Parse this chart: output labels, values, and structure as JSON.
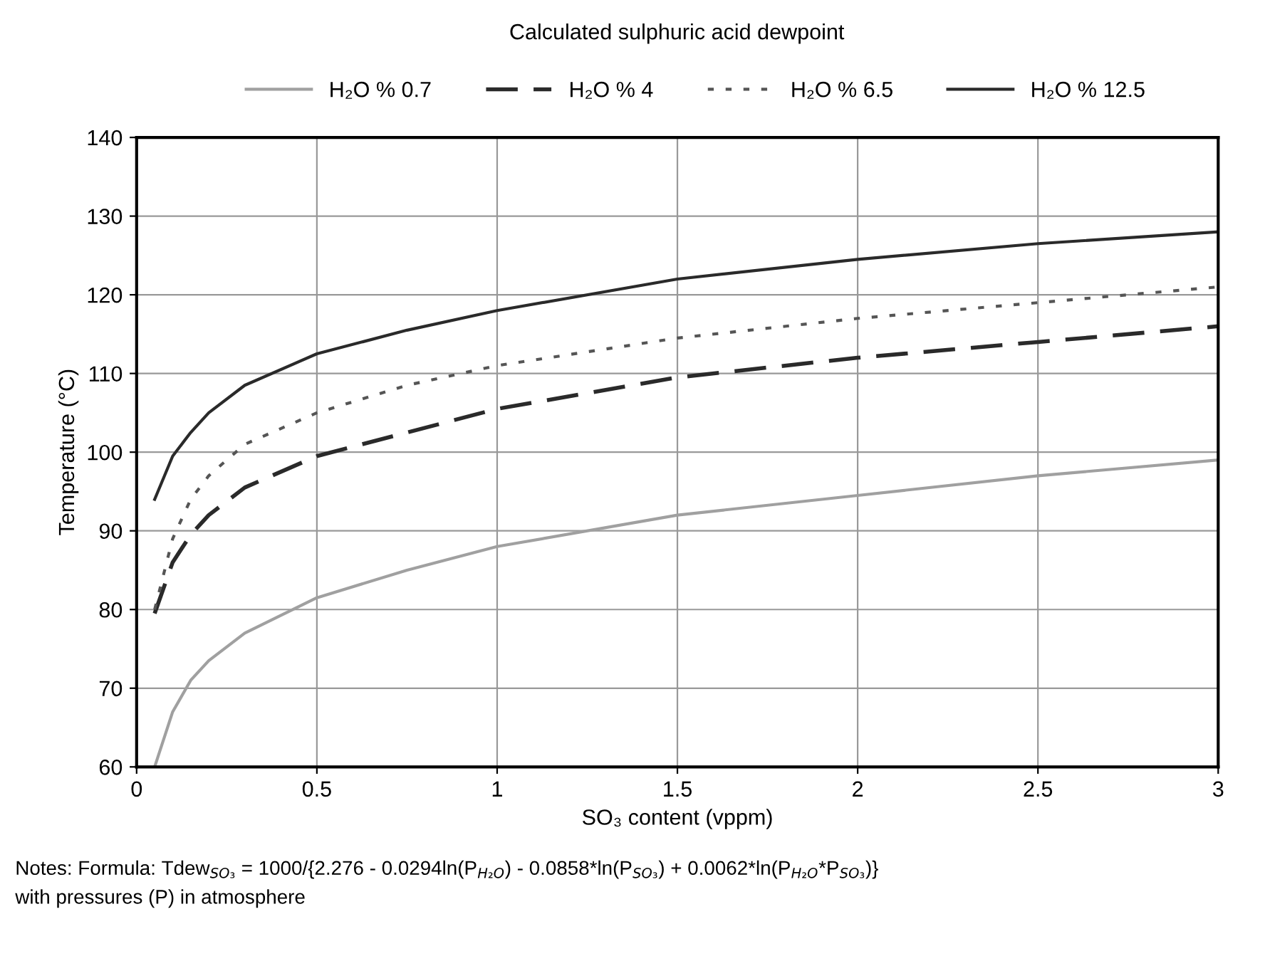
{
  "chart_data": {
    "type": "line",
    "title": "Calculated sulphuric acid dewpoint",
    "xlabel": "SO₃ content (vppm)",
    "ylabel": "Temperature (°C)",
    "x": [
      0.05,
      0.1,
      0.15,
      0.2,
      0.3,
      0.5,
      0.75,
      1,
      1.5,
      2,
      2.5,
      3
    ],
    "series": [
      {
        "name": "H₂O % 0.7",
        "color": "#a0a0a0",
        "line_style": "solid",
        "values": [
          60,
          67,
          71,
          73.5,
          77,
          81.5,
          85,
          88,
          92,
          94.5,
          97,
          99
        ]
      },
      {
        "name": "H₂O % 4",
        "color": "#2a2a2a",
        "line_style": "dashed",
        "values": [
          79.5,
          86,
          89.5,
          92,
          95.5,
          99.5,
          102.5,
          105.5,
          109.5,
          112,
          114,
          116
        ]
      },
      {
        "name": "H₂O % 6.5",
        "color": "#555555",
        "line_style": "dotted",
        "values": [
          80,
          89,
          94,
          97,
          101,
          105,
          108.5,
          111,
          114.5,
          117,
          119,
          121
        ]
      },
      {
        "name": "H₂O % 12.5",
        "color": "#2a2a2a",
        "line_style": "solid",
        "values": [
          94,
          99.5,
          102.5,
          105,
          108.5,
          112.5,
          115.5,
          118,
          122,
          124.5,
          126.5,
          128
        ]
      }
    ],
    "xlim": [
      0,
      3
    ],
    "xticks": [
      0,
      0.5,
      1,
      1.5,
      2,
      2.5,
      3
    ],
    "ylim": [
      60,
      140
    ],
    "yticks": [
      60,
      70,
      80,
      90,
      100,
      110,
      120,
      130,
      140
    ],
    "grid": true,
    "legend": "top",
    "marker": "none",
    "annotations": [
      "Notes: Formula: Tdew$_{SO₃}$ = 1000/{2.276 - 0.0294ln(P$_{H₂O}$) - 0.0858*ln(P$_{SO₃}$) + 0.0062*ln(P$_{H₂O}$*P$_{SO₃}$)}",
      "with pressures (P) in atmosphere"
    ]
  }
}
